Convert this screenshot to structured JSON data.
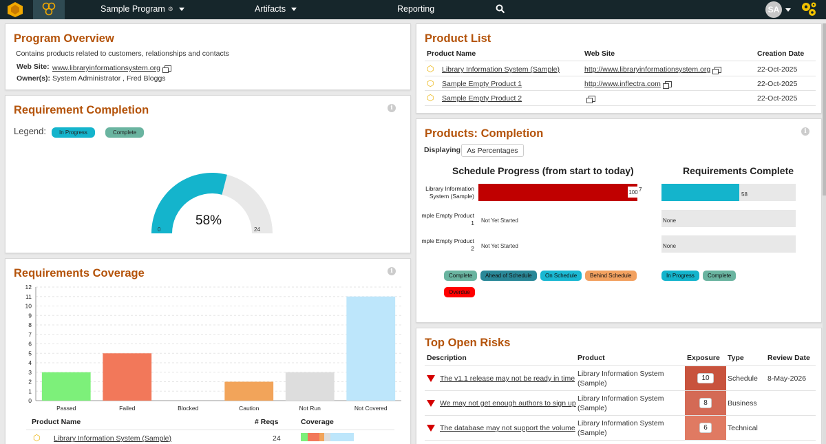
{
  "nav": {
    "program": "Sample Program",
    "artifacts": "Artifacts",
    "reporting": "Reporting",
    "avatar": "SA"
  },
  "overview": {
    "title": "Program Overview",
    "description": "Contains products related to customers, relationships and contacts",
    "website_label": "Web Site:",
    "website": "www.libraryinformationsystem.org",
    "owners_label": "Owner(s):",
    "owners": "System Administrator , Fred Bloggs"
  },
  "req_completion": {
    "title": "Requirement Completion",
    "legend_label": "Legend:",
    "legend": [
      "In Progress",
      "Complete"
    ],
    "percent": "58%",
    "min": "0",
    "max": "24",
    "fraction": 0.58
  },
  "coverage": {
    "title": "Requirements Coverage",
    "table_headers": [
      "Product Name",
      "# Reqs",
      "Coverage"
    ],
    "rows": [
      {
        "name": "Library Information System (Sample)",
        "reqs": "24"
      }
    ]
  },
  "product_list": {
    "title": "Product List",
    "headers": [
      "Product Name",
      "Web Site",
      "Creation Date"
    ],
    "rows": [
      {
        "name": "Library Information System (Sample)",
        "site": "http://www.libraryinformationsystem.org",
        "date": "22-Oct-2025"
      },
      {
        "name": "Sample Empty Product 1",
        "site": "http://www.inflectra.com",
        "date": "22-Oct-2025"
      },
      {
        "name": "Sample Empty Product 2",
        "site": "",
        "date": "22-Oct-2025"
      }
    ]
  },
  "products_completion": {
    "title": "Products: Completion",
    "displaying_label": "Displaying",
    "displaying_value": "As Percentages",
    "schedule_title": "Schedule Progress (from start to today)",
    "req_title": "Requirements Complete",
    "product_labels": [
      "Library Information System (Sample)",
      "mple Empty Product 1",
      "mple Empty Product 2"
    ],
    "schedule_values": [
      "100",
      "7",
      "Not Yet Started",
      "Not Yet Started"
    ],
    "req_values": [
      "58",
      "None",
      "None"
    ],
    "schedule_legend": [
      "Complete",
      "Ahead of Schedule",
      "On Schedule",
      "Behind Schedule",
      "Overdue"
    ],
    "req_legend": [
      "In Progress",
      "Complete"
    ]
  },
  "risks": {
    "title": "Top Open Risks",
    "headers": [
      "Description",
      "Product",
      "Exposure",
      "Type",
      "Review Date"
    ],
    "rows": [
      {
        "desc": "The v1.1 release may not be ready in time",
        "product": "Library Information System (Sample)",
        "exposure": "10",
        "type": "Schedule",
        "date": "8-May-2026"
      },
      {
        "desc": "We may not get enough authors to sign up",
        "product": "Library Information System (Sample)",
        "exposure": "8",
        "type": "Business",
        "date": ""
      },
      {
        "desc": "The database may not support the volume",
        "product": "Library Information System (Sample)",
        "exposure": "6",
        "type": "Technical",
        "date": ""
      }
    ]
  },
  "chart_data": {
    "type": "bar",
    "categories": [
      "Passed",
      "Failed",
      "Blocked",
      "Caution",
      "Not Run",
      "Not Covered"
    ],
    "values": [
      3,
      5,
      0,
      2,
      3,
      11
    ],
    "colors": [
      "#7df07a",
      "#f2785a",
      "#bbbbbb",
      "#f2a45a",
      "#dddddd",
      "#bde6fb"
    ],
    "ylim": [
      0,
      12
    ],
    "yticks": [
      "0",
      "1",
      "2",
      "3",
      "4",
      "5",
      "6",
      "7",
      "8",
      "9",
      "10",
      "11",
      "12"
    ],
    "grid": true
  },
  "colors": {
    "in_progress": "#14b4cc",
    "complete": "#6ab4a0",
    "ahead": "#2a8898",
    "on_schedule": "#1ab8d2",
    "behind": "#f2a160",
    "overdue": "#ff0000",
    "title": "#b4530a"
  }
}
